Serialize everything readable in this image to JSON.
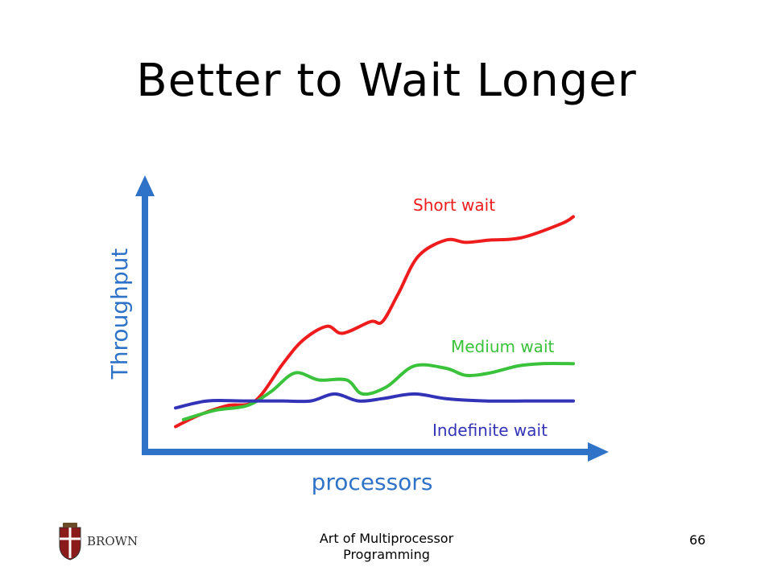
{
  "slide": {
    "title": "Better to Wait Longer",
    "footer_caption": "Art of Multiprocessor Programming",
    "page_number": "66",
    "logo_text": "BROWN"
  },
  "colors": {
    "axis": "#2f73c9",
    "short_wait": "#ee1c1c",
    "medium_wait": "#3ac33a",
    "indefinite_wait": "#3333b8"
  },
  "chart_data": {
    "type": "line",
    "xlabel": "processors",
    "ylabel": "Throughput",
    "series": [
      {
        "name": "Short wait",
        "color": "#ee1c1c",
        "x": [
          0,
          0.06,
          0.13,
          0.2,
          0.27,
          0.32,
          0.38,
          0.42,
          0.49,
          0.52,
          0.56,
          0.61,
          0.68,
          0.73,
          0.79,
          0.87,
          0.97,
          1.0
        ],
        "y": [
          0.05,
          0.1,
          0.14,
          0.16,
          0.32,
          0.42,
          0.48,
          0.45,
          0.5,
          0.5,
          0.62,
          0.78,
          0.85,
          0.84,
          0.85,
          0.86,
          0.92,
          0.95
        ]
      },
      {
        "name": "Medium wait",
        "color": "#3ac33a",
        "x": [
          0.02,
          0.1,
          0.18,
          0.24,
          0.3,
          0.36,
          0.43,
          0.47,
          0.53,
          0.6,
          0.68,
          0.73,
          0.79,
          0.86,
          0.92,
          1.0
        ],
        "y": [
          0.08,
          0.12,
          0.14,
          0.2,
          0.28,
          0.25,
          0.25,
          0.19,
          0.22,
          0.31,
          0.3,
          0.27,
          0.28,
          0.31,
          0.32,
          0.32
        ]
      },
      {
        "name": "Indefinite wait",
        "color": "#3333b8",
        "x": [
          0,
          0.08,
          0.17,
          0.27,
          0.34,
          0.4,
          0.46,
          0.52,
          0.6,
          0.68,
          0.78,
          0.88,
          1.0
        ],
        "y": [
          0.13,
          0.16,
          0.16,
          0.16,
          0.16,
          0.19,
          0.16,
          0.17,
          0.19,
          0.17,
          0.16,
          0.16,
          0.16
        ]
      }
    ]
  }
}
